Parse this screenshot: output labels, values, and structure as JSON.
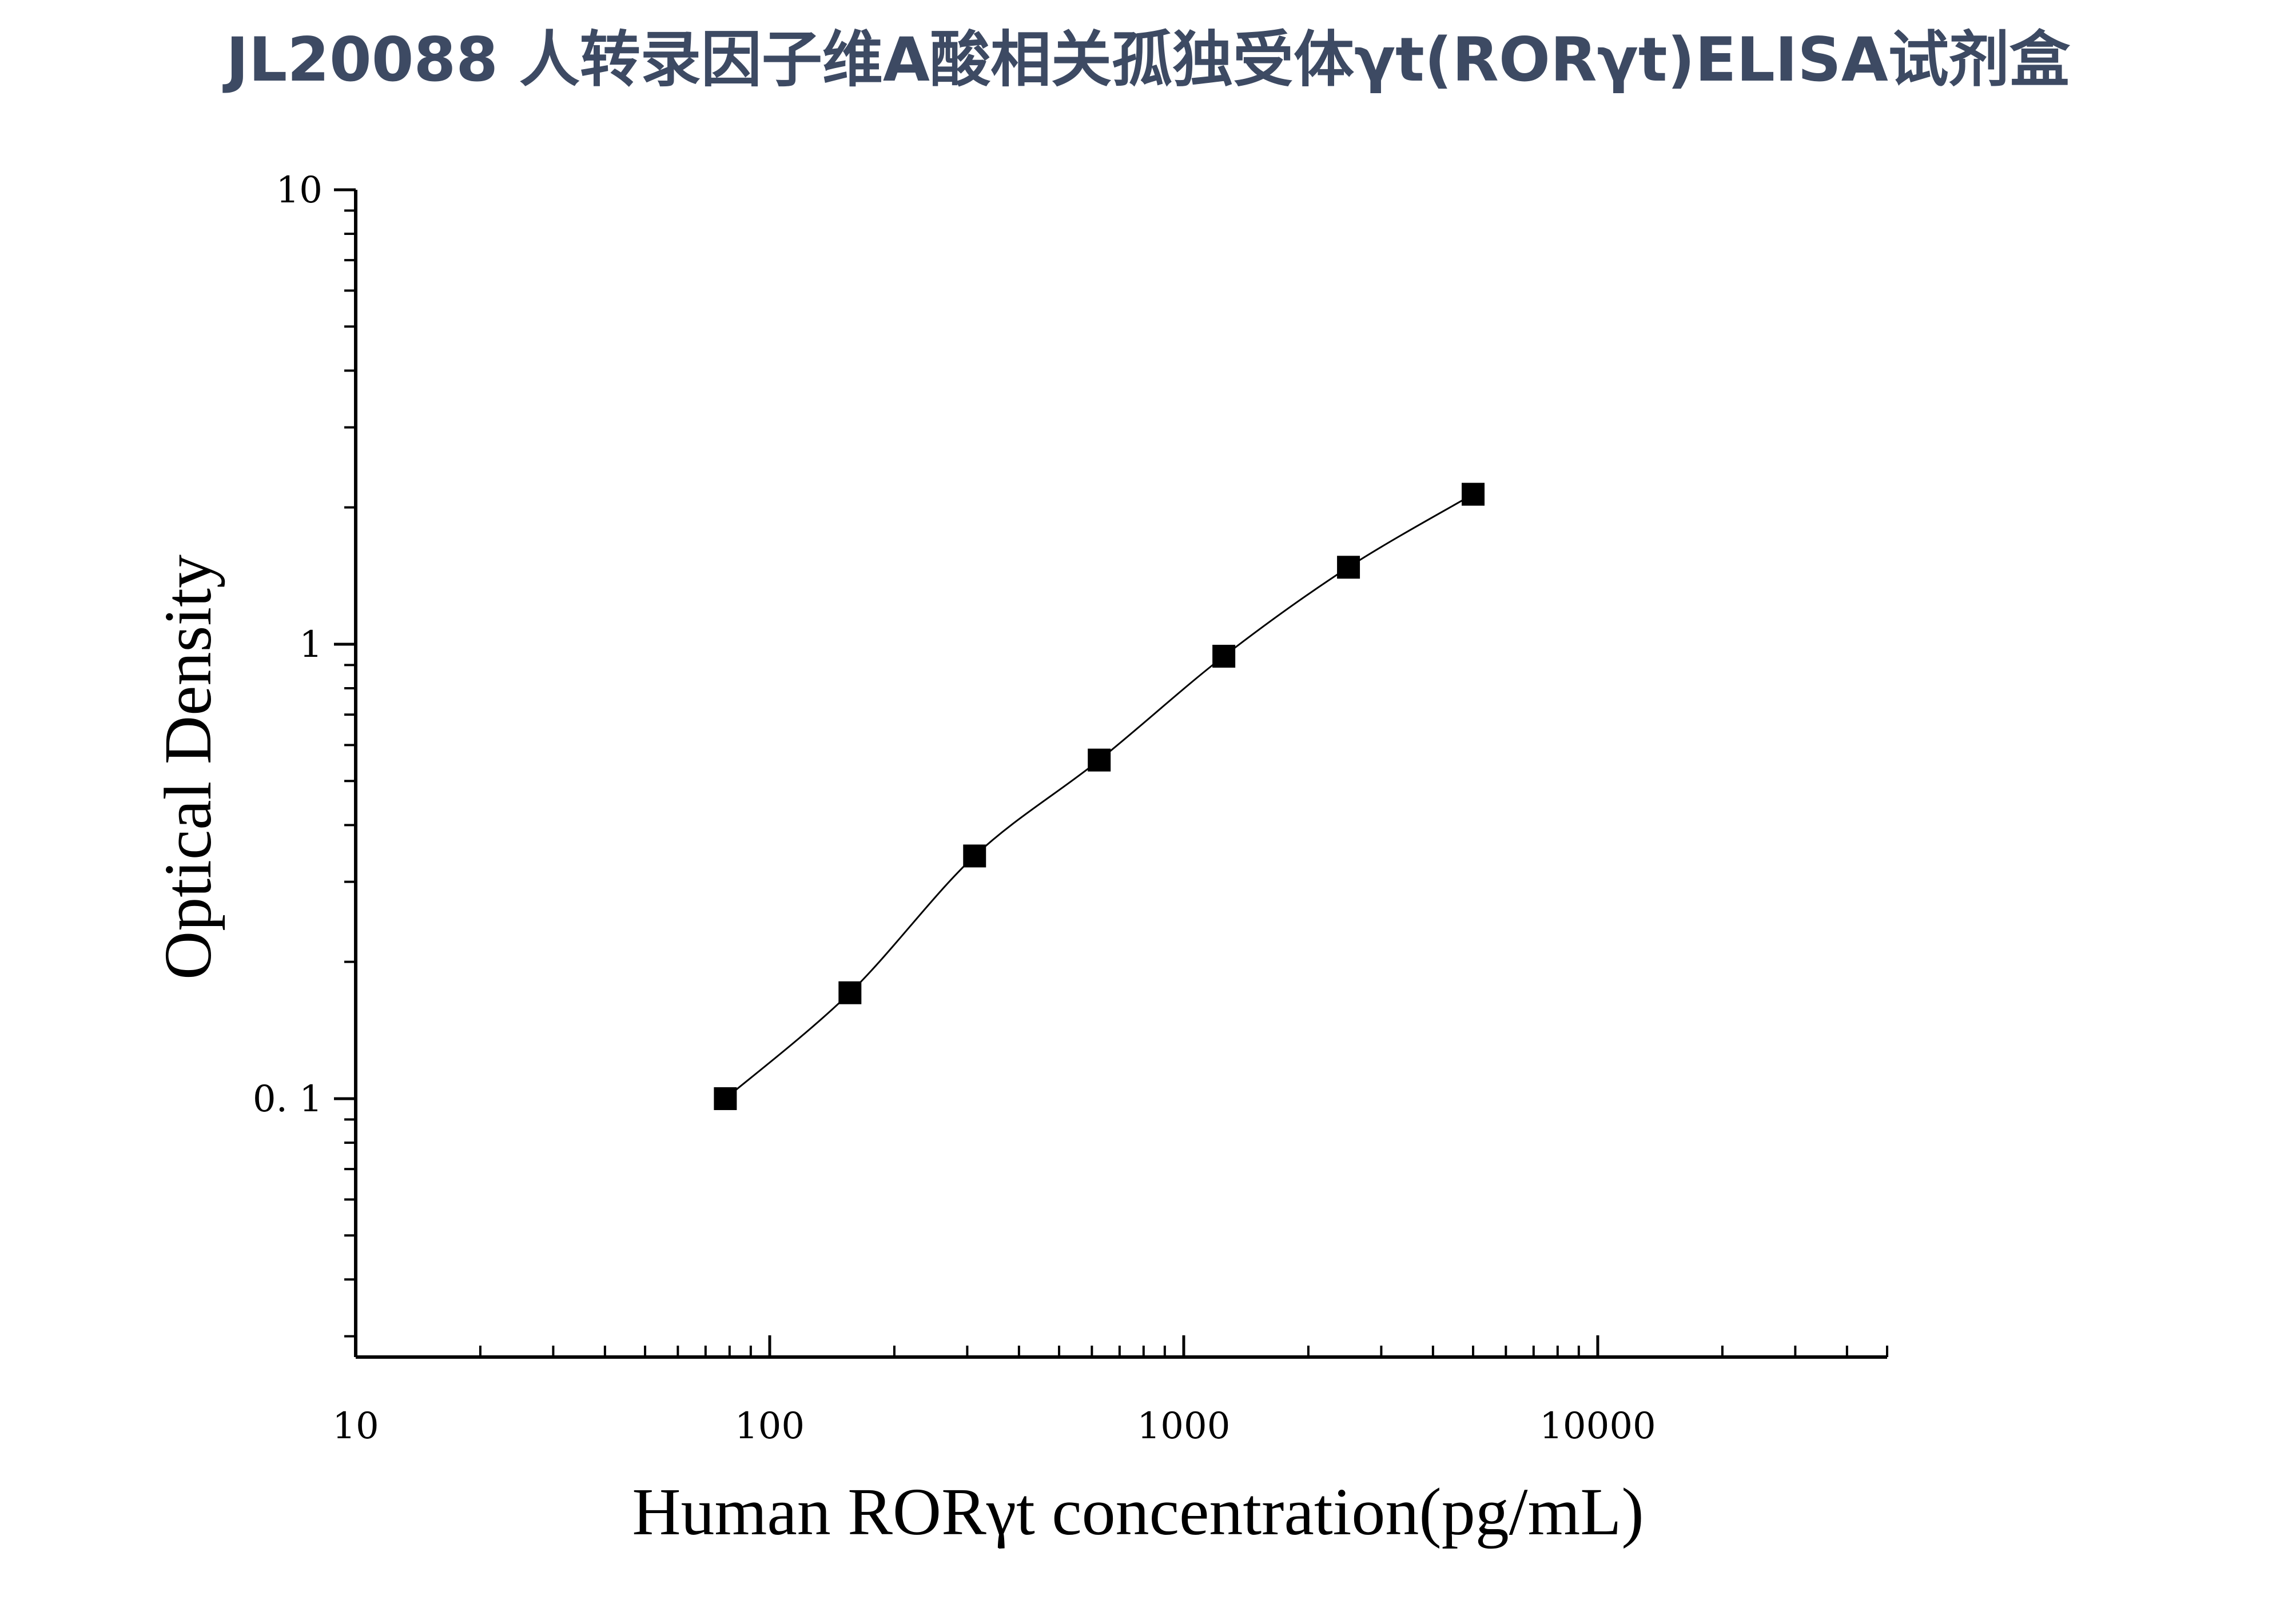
{
  "page": {
    "title": "JL20088 人转录因子维A酸相关孤独受体γt(RORγt)ELISA试剂盒"
  },
  "chart_data": {
    "type": "scatter",
    "title": "JL20088 人转录因子维A酸相关孤独受体γt(RORγt)ELISA试剂盒",
    "xlabel": "Human RORγt concentration(pg/mL)",
    "ylabel": "Optical Density",
    "x_scale": "log",
    "y_scale": "log",
    "xlim": [
      10,
      50000
    ],
    "ylim": [
      0.027,
      10
    ],
    "x_ticks": [
      10,
      100,
      1000,
      10000
    ],
    "x_tick_labels": [
      "10",
      "100",
      "1000",
      "10000"
    ],
    "y_ticks": [
      0.1,
      1,
      10
    ],
    "y_tick_labels": [
      "0. 1",
      "1",
      "10"
    ],
    "grid": false,
    "legend": "none",
    "marker": "square",
    "fit_line": "smooth curve through points",
    "series": [
      {
        "x": [
          78.13,
          156.25,
          312.5,
          625,
          1250,
          2500,
          5000
        ],
        "y": [
          0.1,
          0.171,
          0.342,
          0.556,
          0.941,
          1.477,
          2.138
        ]
      }
    ],
    "colors": {
      "title": "#3d4a63",
      "axis": "#000000",
      "marker": "#000000",
      "line": "#000000"
    }
  }
}
